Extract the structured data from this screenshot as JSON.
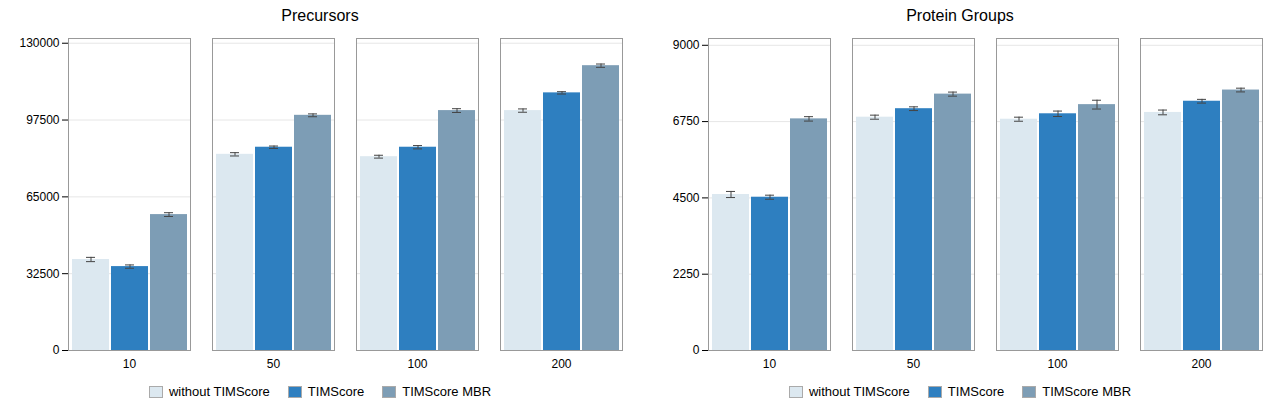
{
  "chart_data": [
    {
      "type": "bar",
      "title": "Precursors",
      "categories": [
        "10",
        "50",
        "100",
        "200"
      ],
      "series": [
        {
          "name": "without TIMScore",
          "color": "#dce8f0",
          "values": [
            38500,
            83000,
            82000,
            101500
          ],
          "errors": [
            900,
            700,
            600,
            700
          ]
        },
        {
          "name": "TIMScore",
          "color": "#2e7fc0",
          "values": [
            35500,
            86000,
            86000,
            109000
          ],
          "errors": [
            700,
            500,
            700,
            500
          ]
        },
        {
          "name": "TIMScore MBR",
          "color": "#7d9db5",
          "values": [
            57500,
            99500,
            101500,
            120500
          ],
          "errors": [
            800,
            600,
            800,
            700
          ]
        }
      ],
      "ylim": [
        0,
        132000
      ],
      "yticks": [
        0,
        32500,
        65000,
        97500,
        130000
      ],
      "grid": true,
      "legend": "bottom"
    },
    {
      "type": "bar",
      "title": "Protein Groups",
      "categories": [
        "10",
        "50",
        "100",
        "200"
      ],
      "series": [
        {
          "name": "without TIMScore",
          "color": "#dce8f0",
          "values": [
            4600,
            6880,
            6820,
            7020
          ],
          "errors": [
            90,
            60,
            60,
            70
          ]
        },
        {
          "name": "TIMScore",
          "color": "#2e7fc0",
          "values": [
            4520,
            7130,
            6980,
            7350
          ],
          "errors": [
            60,
            55,
            80,
            55
          ]
        },
        {
          "name": "TIMScore MBR",
          "color": "#7d9db5",
          "values": [
            6830,
            7560,
            7250,
            7680
          ],
          "errors": [
            65,
            60,
            130,
            55
          ]
        }
      ],
      "ylim": [
        0,
        9200
      ],
      "yticks": [
        0,
        2250,
        4500,
        6750,
        9000
      ],
      "grid": true,
      "legend": "bottom"
    }
  ]
}
